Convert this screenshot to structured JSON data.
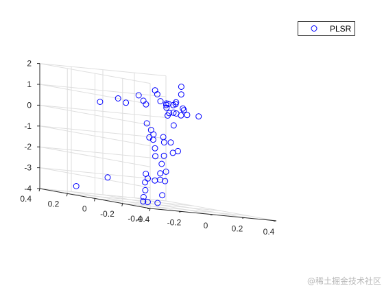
{
  "chart_data": {
    "type": "scatter",
    "projection": "3d",
    "grid": true,
    "legend_placement": "top-right",
    "colors": {
      "marker": "#0000ff",
      "grid": "#dedede",
      "axis": "#262626",
      "background": "#ffffff"
    },
    "xlim": [
      -0.4,
      0.4
    ],
    "ylim": [
      -0.4,
      0.4
    ],
    "zlim": [
      -4,
      2
    ],
    "x_ticks": [
      "-0.4",
      "-0.2",
      "0",
      "0.2",
      "0.4"
    ],
    "y_ticks": [
      "-0.4",
      "-0.2",
      "0",
      "0.2",
      "0.4"
    ],
    "z_ticks": [
      "-4",
      "-3",
      "-2",
      "-1",
      "0",
      "1",
      "2"
    ],
    "series": [
      {
        "name": "PLSR",
        "marker": "circle-open",
        "points": [
          [
            -0.382,
            -0.016,
            0.67
          ],
          [
            -0.285,
            -0.036,
            0.93
          ],
          [
            -0.253,
            -0.056,
            0.77
          ],
          [
            -0.181,
            -0.066,
            1.19
          ],
          [
            -0.177,
            -0.096,
            0.97
          ],
          [
            -0.178,
            -0.116,
            0.82
          ],
          [
            -0.08,
            -0.086,
            1.34
          ],
          [
            -0.068,
            -0.056,
            1.5
          ],
          [
            -0.025,
            -0.046,
            1.0
          ],
          [
            0.03,
            -0.076,
            0.89
          ],
          [
            0.013,
            -0.046,
            0.92
          ],
          [
            0.098,
            -0.056,
            1.43
          ],
          [
            0.022,
            -0.036,
            0.71
          ],
          [
            0.071,
            -0.046,
            0.93
          ],
          [
            0.075,
            -0.026,
            0.5
          ],
          [
            0.084,
            -0.036,
            0.48
          ],
          [
            0.126,
            -0.036,
            0.75
          ],
          [
            0.038,
            -0.016,
            0.83
          ],
          [
            0.048,
            -0.026,
            0.46
          ],
          [
            0.061,
            -0.006,
            0.89
          ],
          [
            0.109,
            -0.006,
            1.0
          ],
          [
            0.082,
            0.024,
            0.31
          ],
          [
            0.149,
            0.004,
            0.39
          ],
          [
            0.177,
            0.034,
            1.75
          ],
          [
            0.185,
            0.024,
            0.64
          ],
          [
            0.214,
            0.034,
            0.42
          ],
          [
            0.296,
            0.044,
            0.4
          ],
          [
            0.155,
            0.064,
            -0.16
          ],
          [
            -0.138,
            -0.076,
            -0.11
          ],
          [
            -0.076,
            -0.036,
            -0.43
          ],
          [
            -0.078,
            -0.026,
            -0.8
          ],
          [
            -0.043,
            -0.016,
            -0.64
          ],
          [
            -0.036,
            -0.006,
            -0.9
          ],
          [
            -0.016,
            0.004,
            -1.31
          ],
          [
            0.028,
            -0.006,
            -0.73
          ],
          [
            0.051,
            0.014,
            -0.99
          ],
          [
            0.041,
            0.004,
            -1.63
          ],
          [
            0.084,
            0.004,
            -0.96
          ],
          [
            0.106,
            0.014,
            -1.45
          ],
          [
            0.147,
            0.024,
            -1.35
          ],
          [
            -0.014,
            0.004,
            -1.69
          ],
          [
            0.044,
            0.024,
            -2.04
          ],
          [
            0.08,
            0.034,
            -2.4
          ],
          [
            -0.074,
            0.004,
            -2.58
          ],
          [
            -0.053,
            0.014,
            -2.8
          ],
          [
            -0.061,
            0.024,
            -3.0
          ],
          [
            -0.008,
            0.014,
            -2.86
          ],
          [
            0.035,
            0.024,
            -2.5
          ],
          [
            0.043,
            0.034,
            -2.81
          ],
          [
            0.083,
            0.044,
            -2.86
          ],
          [
            -0.06,
            0.024,
            -3.38
          ],
          [
            -0.062,
            0.034,
            -3.72
          ],
          [
            -0.056,
            0.044,
            -3.94
          ],
          [
            -0.036,
            0.034,
            -3.94
          ],
          [
            0.044,
            0.054,
            -3.95
          ],
          [
            0.065,
            0.044,
            -3.55
          ],
          [
            -0.29,
            0.034,
            -2.95
          ],
          [
            -0.27,
            0.284,
            -3.65
          ]
        ]
      }
    ]
  },
  "watermark": "@稀土掘金技术社区"
}
